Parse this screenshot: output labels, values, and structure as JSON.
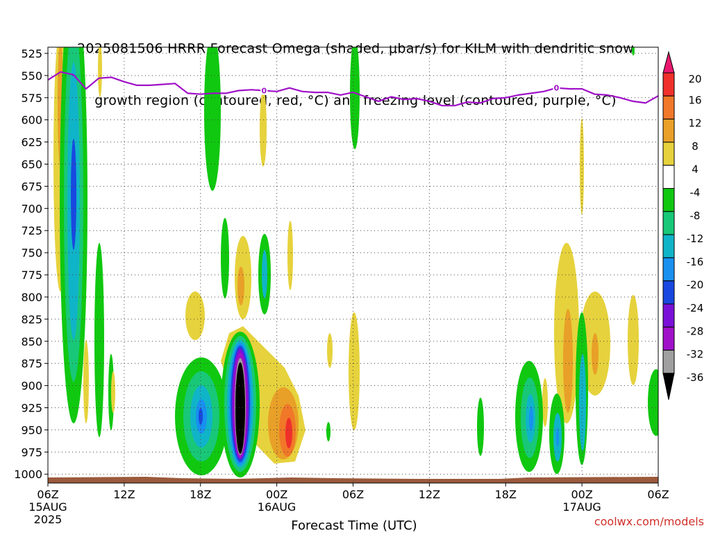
{
  "title": {
    "line1": "2025081506 HRRR Forecast Omega (shaded, μbar/s) for KILM with dendritic snow",
    "line2": "growth region (contoured, red, °C) and freezing level (contoured, purple, °C)"
  },
  "credit": "coolwx.com/models",
  "colors": {
    "freezing_level": "#a010c8",
    "terrain": "#9b5a3c",
    "grid": "#444444"
  },
  "chart_data": {
    "type": "heatmap",
    "title": "2025081506 HRRR Forecast Omega (shaded, μbar/s) for KILM with dendritic snow growth region (contoured, red, °C) and freezing level (contoured, purple, °C)",
    "xlabel": "Forecast Time (UTC)",
    "ylabel": "",
    "x_ticks": [
      {
        "hour": 0,
        "label": "06Z",
        "sub": "15AUG",
        "sub2": "2025"
      },
      {
        "hour": 6,
        "label": "12Z",
        "sub": "",
        "sub2": ""
      },
      {
        "hour": 12,
        "label": "18Z",
        "sub": "",
        "sub2": ""
      },
      {
        "hour": 18,
        "label": "00Z",
        "sub": "16AUG",
        "sub2": ""
      },
      {
        "hour": 24,
        "label": "06Z",
        "sub": "",
        "sub2": ""
      },
      {
        "hour": 30,
        "label": "12Z",
        "sub": "",
        "sub2": ""
      },
      {
        "hour": 36,
        "label": "18Z",
        "sub": "",
        "sub2": ""
      },
      {
        "hour": 42,
        "label": "00Z",
        "sub": "17AUG",
        "sub2": ""
      },
      {
        "hour": 48,
        "label": "06Z",
        "sub": "",
        "sub2": ""
      }
    ],
    "xlim": [
      0,
      48
    ],
    "y_ticks": [
      525,
      550,
      575,
      600,
      625,
      650,
      675,
      700,
      725,
      750,
      775,
      800,
      825,
      850,
      875,
      900,
      925,
      950,
      975,
      1000
    ],
    "ylim": [
      518,
      1010
    ],
    "grid": true,
    "colorbar": {
      "labels": [
        "20",
        "16",
        "12",
        "8",
        "4",
        "-4",
        "-8",
        "-12",
        "-16",
        "-20",
        "-24",
        "-28",
        "-32",
        "-36"
      ],
      "colors": [
        "#e8186e",
        "#f0302a",
        "#f07828",
        "#e8a028",
        "#e6d23c",
        "#ffffff",
        "#10c810",
        "#18c878",
        "#10b4c8",
        "#1890f0",
        "#1848e0",
        "#7a10d8",
        "#a010c8",
        "#a0a0a0",
        "#000000"
      ]
    },
    "freezing_level": {
      "label": "0",
      "hours": [
        0,
        1,
        2,
        3,
        4,
        5,
        6,
        7,
        8,
        9,
        10,
        11,
        12,
        13,
        14,
        15,
        16,
        17,
        18,
        19,
        20,
        21,
        22,
        23,
        24,
        25,
        26,
        27,
        28,
        29,
        30,
        31,
        32,
        33,
        34,
        35,
        36,
        37,
        38,
        39,
        40,
        41,
        42,
        43,
        44,
        45,
        46,
        47,
        48
      ],
      "pressure_hpa": [
        555,
        546,
        549,
        565,
        553,
        552,
        557,
        561,
        561,
        560,
        559,
        570,
        571,
        570,
        570,
        567,
        566,
        567,
        568,
        564,
        568,
        569,
        569,
        572,
        569,
        574,
        579,
        574,
        577,
        576,
        579,
        584,
        584,
        580,
        581,
        576,
        575,
        572,
        570,
        568,
        564,
        565,
        565,
        571,
        572,
        575,
        579,
        581,
        573
      ]
    },
    "omega_features": [
      {
        "hour": 0.8,
        "p_top": 520,
        "p_bottom": 800,
        "peak": 12,
        "sign": "up"
      },
      {
        "hour": 1.9,
        "p_top": 520,
        "p_bottom": 935,
        "peak": -24,
        "sign": "down"
      },
      {
        "hour": 3.6,
        "p_top": 700,
        "p_bottom": 960,
        "peak": -8,
        "sign": "down"
      },
      {
        "hour": 12.0,
        "p_top": 840,
        "p_bottom": 985,
        "peak": -20,
        "sign": "down"
      },
      {
        "hour": 15.0,
        "p_top": 805,
        "p_bottom": 998,
        "peak": -36,
        "sign": "down"
      },
      {
        "hour": 17.5,
        "p_top": 700,
        "p_bottom": 980,
        "peak": 16,
        "sign": "up"
      },
      {
        "hour": 35.0,
        "p_top": 855,
        "p_bottom": 985,
        "peak": -20,
        "sign": "down"
      },
      {
        "hour": 40.2,
        "p_top": 710,
        "p_bottom": 920,
        "peak": 8,
        "sign": "up"
      }
    ],
    "terrain_hpa": 1012
  },
  "axes": {
    "x_title": "Forecast Time (UTC)"
  }
}
